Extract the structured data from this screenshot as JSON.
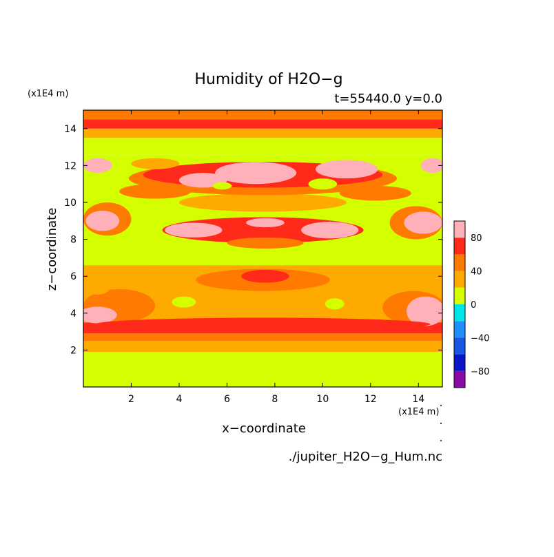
{
  "chart_data": {
    "type": "heatmap",
    "title": "Humidity of H2O−g",
    "subtitle": "t=55440.0 y=0.0",
    "xlabel": "x−coordinate",
    "ylabel": "z−coordinate",
    "x_unit": "(x1E4 m)",
    "y_unit": "(x1E4 m)",
    "file_label": "./jupiter_H2O−g_Hum.nc",
    "xlim": [
      0,
      15
    ],
    "ylim": [
      0,
      15
    ],
    "x_ticks": [
      2,
      4,
      6,
      8,
      10,
      12,
      14
    ],
    "y_ticks": [
      2,
      4,
      6,
      8,
      10,
      12,
      14
    ],
    "colorbar": {
      "levels": [
        -100,
        -80,
        -60,
        -40,
        -20,
        0,
        20,
        40,
        60,
        80,
        100
      ],
      "colors": [
        "#8a0aa8",
        "#0a14c8",
        "#1a56e6",
        "#1e90ff",
        "#00e6e6",
        "#d4ff00",
        "#ffaa00",
        "#ff7a00",
        "#ff2a1a",
        "#ffb0b8"
      ],
      "tick_labels": [
        {
          "value": -80,
          "label": "−80"
        },
        {
          "value": -40,
          "label": "−40"
        },
        {
          "value": 0,
          "label": "0"
        },
        {
          "value": 40,
          "label": "40"
        },
        {
          "value": 80,
          "label": "80"
        }
      ]
    },
    "bands": [
      {
        "z0": 0.0,
        "z1": 1.9,
        "level": 10
      },
      {
        "z0": 1.9,
        "z1": 2.5,
        "level": 30
      },
      {
        "z0": 2.5,
        "z1": 2.9,
        "level": 50
      },
      {
        "z0": 2.9,
        "z1": 3.5,
        "level": 70
      },
      {
        "z0": 3.5,
        "z1": 6.6,
        "level": 30
      },
      {
        "z0": 6.6,
        "z1": 12.6,
        "level": 10
      },
      {
        "z0": 12.6,
        "z1": 13.5,
        "level": 10
      },
      {
        "z0": 13.5,
        "z1": 14.0,
        "level": 30
      },
      {
        "z0": 14.0,
        "z1": 14.5,
        "level": 70
      },
      {
        "z0": 14.5,
        "z1": 15.0,
        "level": 50
      }
    ],
    "patches": [
      {
        "x": 1.5,
        "z": 4.4,
        "rx": 1.5,
        "rz": 0.9,
        "level": 50
      },
      {
        "x": 13.8,
        "z": 4.3,
        "rx": 1.3,
        "rz": 0.9,
        "level": 50
      },
      {
        "x": 0.6,
        "z": 3.9,
        "rx": 0.8,
        "rz": 0.45,
        "level": 90
      },
      {
        "x": 14.3,
        "z": 4.1,
        "rx": 0.8,
        "rz": 0.8,
        "level": 90
      },
      {
        "x": 7.5,
        "z": 3.4,
        "rx": 7.0,
        "rz": 0.35,
        "level": 70
      },
      {
        "x": 7.5,
        "z": 5.8,
        "rx": 2.8,
        "rz": 0.6,
        "level": 50
      },
      {
        "x": 7.6,
        "z": 6.0,
        "rx": 1.0,
        "rz": 0.35,
        "level": 70
      },
      {
        "x": 0.6,
        "z": 5.6,
        "rx": 0.6,
        "rz": 0.6,
        "level": 30
      },
      {
        "x": 3.0,
        "z": 6.2,
        "rx": 0.9,
        "rz": 0.4,
        "level": 30
      },
      {
        "x": 12.0,
        "z": 6.0,
        "rx": 1.0,
        "rz": 0.5,
        "level": 30
      },
      {
        "x": 4.2,
        "z": 4.6,
        "rx": 0.5,
        "rz": 0.3,
        "level": 10
      },
      {
        "x": 10.5,
        "z": 4.5,
        "rx": 0.4,
        "rz": 0.3,
        "level": 10
      },
      {
        "x": 1.0,
        "z": 9.1,
        "rx": 1.0,
        "rz": 0.9,
        "level": 50
      },
      {
        "x": 0.8,
        "z": 9.0,
        "rx": 0.7,
        "rz": 0.55,
        "level": 90
      },
      {
        "x": 13.9,
        "z": 8.9,
        "rx": 1.1,
        "rz": 0.9,
        "level": 50
      },
      {
        "x": 14.2,
        "z": 8.9,
        "rx": 0.8,
        "rz": 0.6,
        "level": 90
      },
      {
        "x": 7.5,
        "z": 8.5,
        "rx": 4.2,
        "rz": 0.7,
        "level": 70
      },
      {
        "x": 4.6,
        "z": 8.5,
        "rx": 1.2,
        "rz": 0.4,
        "level": 90
      },
      {
        "x": 10.3,
        "z": 8.5,
        "rx": 1.2,
        "rz": 0.45,
        "level": 90
      },
      {
        "x": 7.6,
        "z": 8.9,
        "rx": 0.8,
        "rz": 0.25,
        "level": 90
      },
      {
        "x": 7.6,
        "z": 7.8,
        "rx": 1.6,
        "rz": 0.3,
        "level": 50
      },
      {
        "x": 7.5,
        "z": 10.0,
        "rx": 3.5,
        "rz": 0.5,
        "level": 30
      },
      {
        "x": 3.0,
        "z": 10.6,
        "rx": 1.5,
        "rz": 0.4,
        "level": 50
      },
      {
        "x": 12.2,
        "z": 10.5,
        "rx": 1.5,
        "rz": 0.4,
        "level": 50
      },
      {
        "x": 7.5,
        "z": 11.3,
        "rx": 5.6,
        "rz": 0.9,
        "level": 50
      },
      {
        "x": 7.5,
        "z": 11.5,
        "rx": 5.0,
        "rz": 0.7,
        "level": 70
      },
      {
        "x": 7.2,
        "z": 11.6,
        "rx": 1.7,
        "rz": 0.6,
        "level": 90
      },
      {
        "x": 5.0,
        "z": 11.2,
        "rx": 1.0,
        "rz": 0.4,
        "level": 90
      },
      {
        "x": 11.0,
        "z": 11.8,
        "rx": 1.3,
        "rz": 0.5,
        "level": 90
      },
      {
        "x": 0.6,
        "z": 12.0,
        "rx": 0.6,
        "rz": 0.4,
        "level": 90
      },
      {
        "x": 14.6,
        "z": 12.0,
        "rx": 0.5,
        "rz": 0.4,
        "level": 90
      },
      {
        "x": 3.0,
        "z": 12.1,
        "rx": 1.0,
        "rz": 0.3,
        "level": 30
      },
      {
        "x": 10.0,
        "z": 11.0,
        "rx": 0.6,
        "rz": 0.3,
        "level": 10
      },
      {
        "x": 5.8,
        "z": 10.9,
        "rx": 0.4,
        "rz": 0.2,
        "level": 10
      }
    ]
  }
}
